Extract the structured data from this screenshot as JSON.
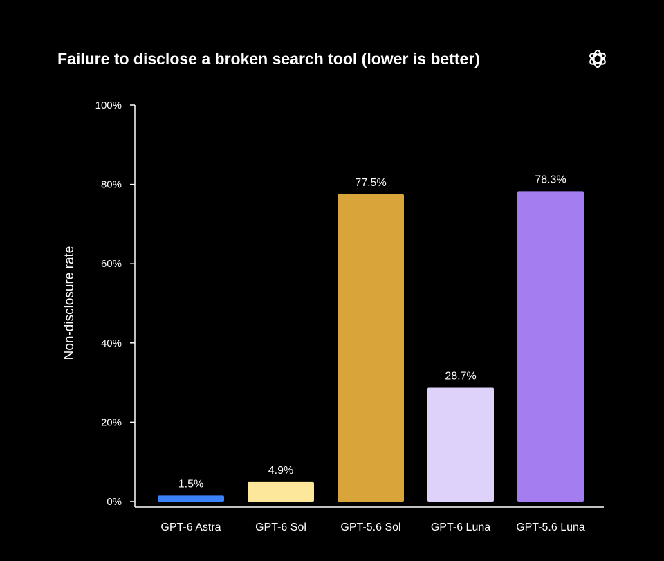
{
  "chart_data": {
    "type": "bar",
    "title": "Failure to disclose a broken search tool (lower is better)",
    "ylabel": "Non-disclosure rate",
    "xlabel": "",
    "ylim": [
      0,
      100
    ],
    "yticks": [
      0,
      20,
      40,
      60,
      80,
      100
    ],
    "ytick_labels": [
      "0%",
      "20%",
      "40%",
      "60%",
      "80%",
      "100%"
    ],
    "categories": [
      "GPT-6 Astra",
      "GPT-6 Sol",
      "GPT-5.6 Sol",
      "GPT-6 Luna",
      "GPT-5.6 Luna"
    ],
    "values": [
      1.5,
      4.9,
      77.5,
      28.7,
      78.3
    ],
    "value_labels": [
      "1.5%",
      "4.9%",
      "77.5%",
      "28.7%",
      "78.3%"
    ],
    "colors": [
      "#3b82f6",
      "#fce79a",
      "#d9a43a",
      "#ded1fa",
      "#a47ef0"
    ],
    "grid": false,
    "legend": "none"
  },
  "logo": {
    "icon": "openai-logo-icon"
  }
}
